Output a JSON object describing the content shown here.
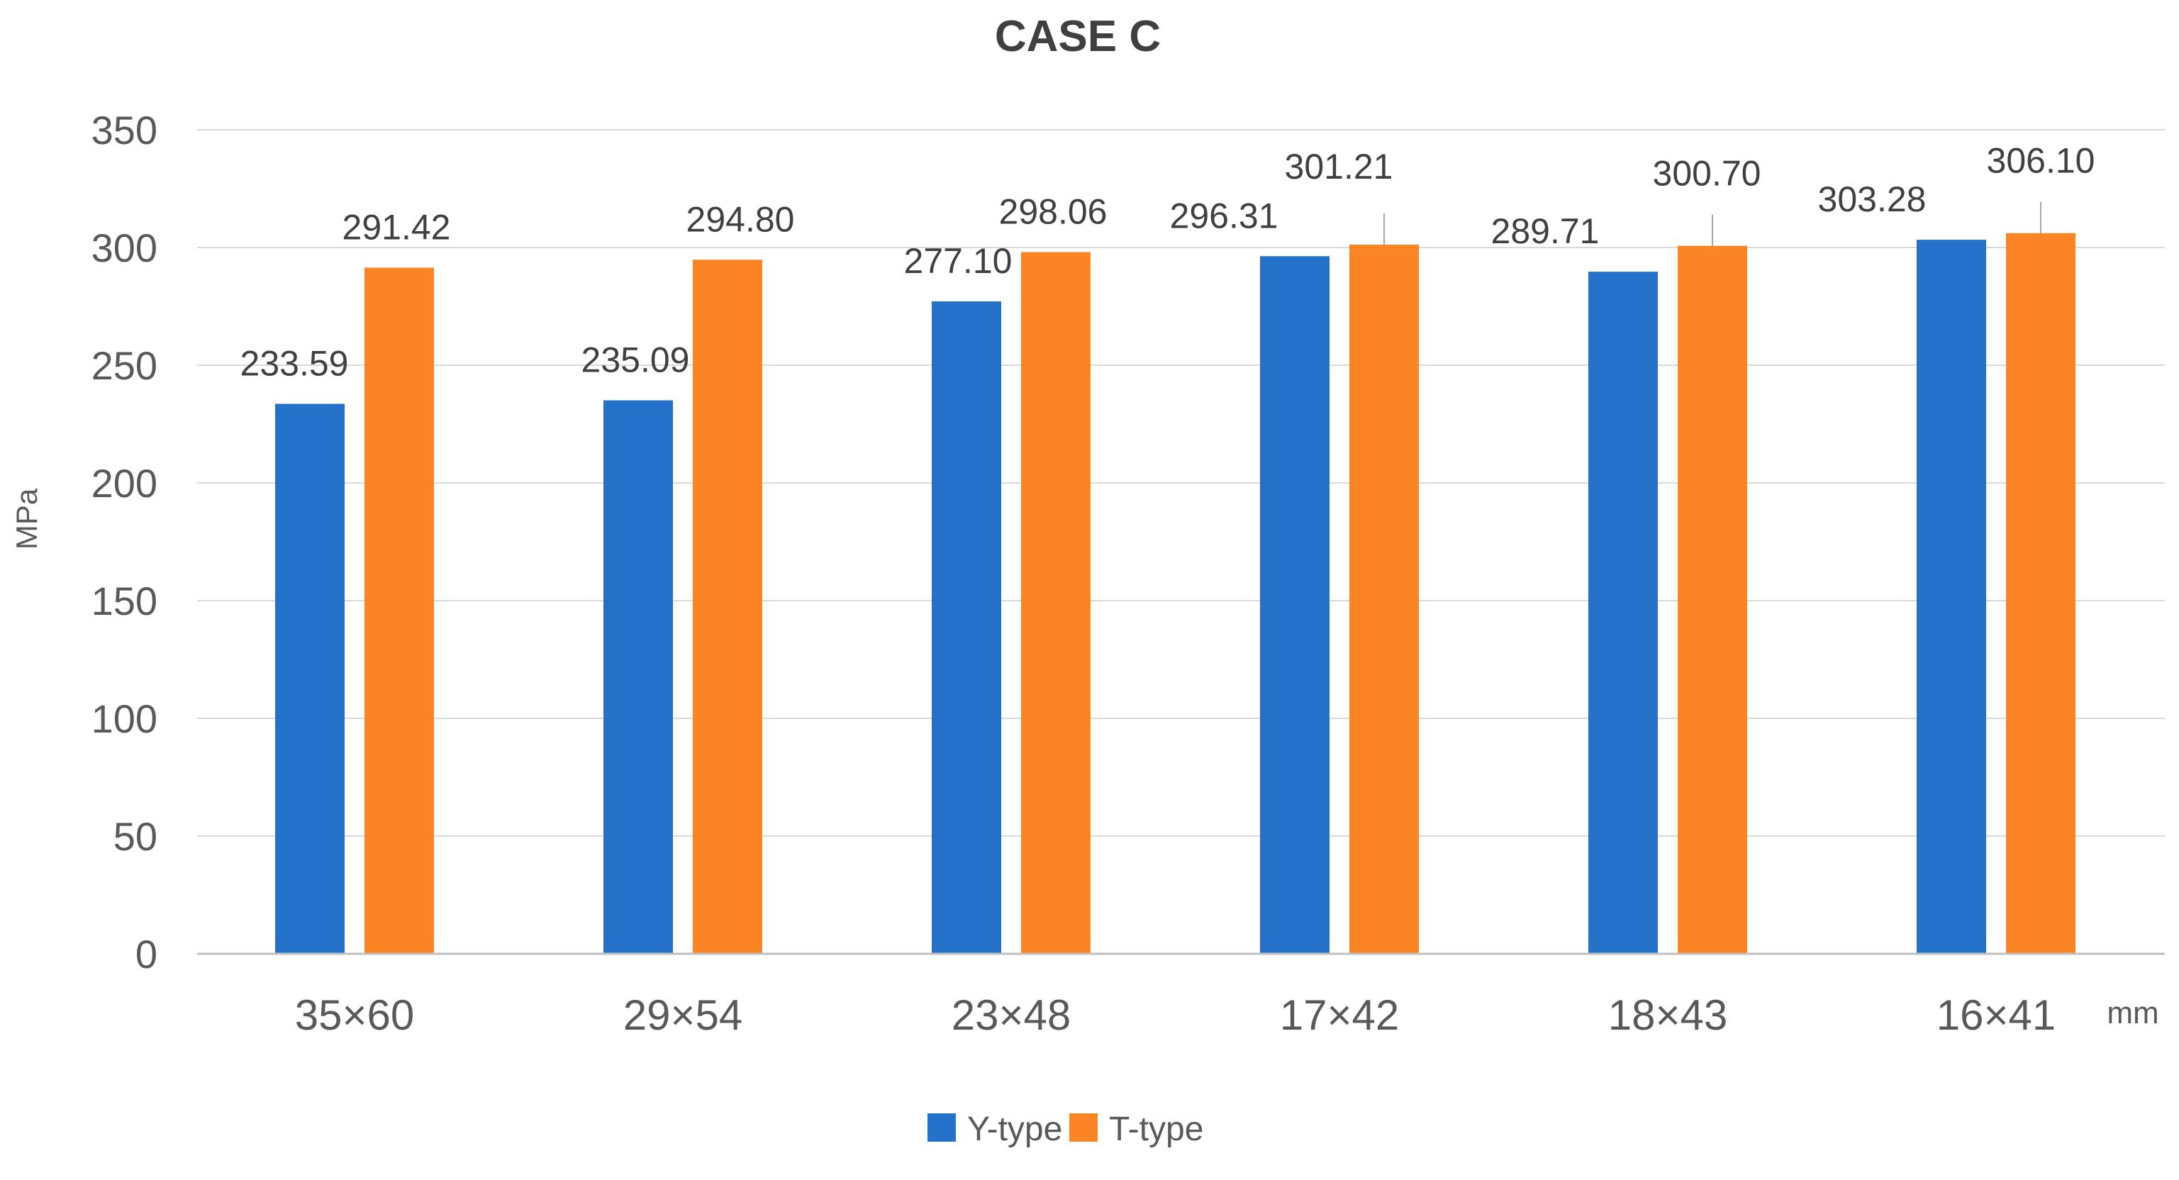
{
  "chart_data": {
    "type": "bar",
    "title": "CASE C",
    "ylabel": "MPa",
    "xlabel": "mm",
    "ylim": [
      0,
      350
    ],
    "yticks": [
      0,
      50,
      100,
      150,
      200,
      250,
      300,
      350
    ],
    "grid": true,
    "legend": "bottom",
    "categories": [
      "35×60",
      "29×54",
      "23×48",
      "17×42",
      "18×43",
      "16×41"
    ],
    "series": [
      {
        "name": "Y-type",
        "color": "#2471CA",
        "values": [
          233.59,
          235.09,
          277.1,
          296.31,
          289.71,
          303.28
        ],
        "labels": [
          "233.59",
          "235.09",
          "277.10",
          "296.31",
          "289.71",
          "303.28"
        ]
      },
      {
        "name": "T-type",
        "color": "#FB8525",
        "values": [
          291.42,
          294.8,
          298.06,
          301.21,
          300.7,
          306.1
        ],
        "labels": [
          "291.42",
          "294.80",
          "298.06",
          "301.21",
          "300.70",
          "306.10"
        ]
      }
    ]
  }
}
